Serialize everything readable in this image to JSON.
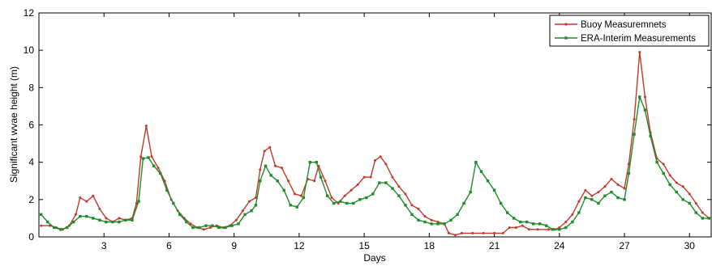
{
  "chart_data": {
    "type": "line",
    "title": "",
    "xlabel": "Days",
    "ylabel": "Significant wvae height (m)",
    "xlim": [
      0,
      31
    ],
    "ylim": [
      0,
      12
    ],
    "xticks": [
      3,
      6,
      9,
      12,
      15,
      18,
      21,
      24,
      27,
      30
    ],
    "yticks": [
      0,
      2,
      4,
      6,
      8,
      10,
      12
    ],
    "grid": false,
    "legend_position": "top-right",
    "series": [
      {
        "name": "Buoy Measuremnets",
        "color": "#c0392b",
        "marker": "dot",
        "points": [
          [
            0.1,
            0.6
          ],
          [
            0.5,
            0.6
          ],
          [
            0.8,
            0.5
          ],
          [
            1.1,
            0.4
          ],
          [
            1.4,
            0.6
          ],
          [
            1.7,
            1.2
          ],
          [
            1.9,
            2.1
          ],
          [
            2.2,
            1.9
          ],
          [
            2.5,
            2.2
          ],
          [
            2.8,
            1.5
          ],
          [
            3.1,
            1.0
          ],
          [
            3.4,
            0.8
          ],
          [
            3.7,
            1.0
          ],
          [
            4.0,
            0.9
          ],
          [
            4.3,
            1.0
          ],
          [
            4.5,
            1.8
          ],
          [
            4.7,
            4.3
          ],
          [
            4.95,
            5.95
          ],
          [
            5.2,
            4.3
          ],
          [
            5.5,
            3.7
          ],
          [
            5.8,
            3.0
          ],
          [
            6.1,
            2.0
          ],
          [
            6.4,
            1.4
          ],
          [
            6.7,
            1.0
          ],
          [
            7.0,
            0.7
          ],
          [
            7.3,
            0.5
          ],
          [
            7.6,
            0.4
          ],
          [
            7.9,
            0.5
          ],
          [
            8.2,
            0.6
          ],
          [
            8.5,
            0.5
          ],
          [
            8.8,
            0.6
          ],
          [
            9.1,
            0.9
          ],
          [
            9.4,
            1.4
          ],
          [
            9.7,
            1.9
          ],
          [
            10.0,
            2.1
          ],
          [
            10.2,
            3.6
          ],
          [
            10.4,
            4.6
          ],
          [
            10.65,
            4.8
          ],
          [
            10.9,
            3.8
          ],
          [
            11.2,
            3.7
          ],
          [
            11.5,
            3.0
          ],
          [
            11.8,
            2.3
          ],
          [
            12.1,
            2.2
          ],
          [
            12.4,
            3.1
          ],
          [
            12.7,
            3.0
          ],
          [
            12.9,
            3.8
          ],
          [
            13.2,
            3.0
          ],
          [
            13.5,
            2.1
          ],
          [
            13.8,
            1.8
          ],
          [
            14.1,
            2.2
          ],
          [
            14.4,
            2.5
          ],
          [
            14.7,
            2.8
          ],
          [
            15.0,
            3.2
          ],
          [
            15.3,
            3.2
          ],
          [
            15.5,
            4.1
          ],
          [
            15.75,
            4.3
          ],
          [
            16.0,
            3.9
          ],
          [
            16.3,
            3.2
          ],
          [
            16.6,
            2.7
          ],
          [
            16.9,
            2.3
          ],
          [
            17.2,
            1.7
          ],
          [
            17.5,
            1.5
          ],
          [
            17.8,
            1.1
          ],
          [
            18.1,
            0.9
          ],
          [
            18.4,
            0.8
          ],
          [
            18.7,
            0.7
          ],
          [
            18.9,
            0.2
          ],
          [
            19.2,
            0.1
          ],
          [
            19.5,
            0.2
          ],
          [
            20.0,
            0.2
          ],
          [
            20.5,
            0.2
          ],
          [
            21.0,
            0.2
          ],
          [
            21.4,
            0.2
          ],
          [
            21.7,
            0.5
          ],
          [
            22.0,
            0.5
          ],
          [
            22.3,
            0.6
          ],
          [
            22.6,
            0.4
          ],
          [
            23.0,
            0.4
          ],
          [
            23.5,
            0.4
          ],
          [
            23.8,
            0.4
          ],
          [
            24.0,
            0.5
          ],
          [
            24.3,
            0.8
          ],
          [
            24.6,
            1.2
          ],
          [
            24.9,
            1.9
          ],
          [
            25.2,
            2.5
          ],
          [
            25.5,
            2.2
          ],
          [
            25.8,
            2.4
          ],
          [
            26.1,
            2.7
          ],
          [
            26.4,
            3.1
          ],
          [
            26.7,
            2.8
          ],
          [
            27.0,
            2.6
          ],
          [
            27.2,
            3.9
          ],
          [
            27.45,
            6.3
          ],
          [
            27.7,
            9.9
          ],
          [
            27.95,
            7.5
          ],
          [
            28.2,
            5.6
          ],
          [
            28.5,
            4.2
          ],
          [
            28.8,
            3.9
          ],
          [
            29.1,
            3.3
          ],
          [
            29.4,
            2.9
          ],
          [
            29.7,
            2.7
          ],
          [
            30.0,
            2.3
          ],
          [
            30.3,
            1.8
          ],
          [
            30.6,
            1.3
          ],
          [
            30.9,
            1.0
          ]
        ]
      },
      {
        "name": "ERA-Interim Measurements",
        "color": "#1e8c2a",
        "marker": "square",
        "points": [
          [
            0.1,
            1.2
          ],
          [
            0.4,
            0.8
          ],
          [
            0.7,
            0.5
          ],
          [
            1.0,
            0.4
          ],
          [
            1.3,
            0.5
          ],
          [
            1.6,
            0.8
          ],
          [
            1.9,
            1.1
          ],
          [
            2.2,
            1.1
          ],
          [
            2.5,
            1.0
          ],
          [
            2.8,
            0.9
          ],
          [
            3.1,
            0.8
          ],
          [
            3.4,
            0.8
          ],
          [
            3.7,
            0.8
          ],
          [
            4.0,
            0.9
          ],
          [
            4.3,
            0.9
          ],
          [
            4.6,
            1.9
          ],
          [
            4.8,
            4.2
          ],
          [
            5.05,
            4.25
          ],
          [
            5.3,
            3.8
          ],
          [
            5.6,
            3.4
          ],
          [
            5.9,
            2.5
          ],
          [
            6.2,
            1.8
          ],
          [
            6.5,
            1.2
          ],
          [
            6.8,
            0.8
          ],
          [
            7.1,
            0.5
          ],
          [
            7.4,
            0.5
          ],
          [
            7.7,
            0.6
          ],
          [
            8.0,
            0.6
          ],
          [
            8.3,
            0.5
          ],
          [
            8.6,
            0.5
          ],
          [
            8.9,
            0.6
          ],
          [
            9.2,
            0.7
          ],
          [
            9.5,
            1.2
          ],
          [
            9.8,
            1.4
          ],
          [
            10.0,
            1.7
          ],
          [
            10.2,
            3.0
          ],
          [
            10.45,
            3.8
          ],
          [
            10.7,
            3.3
          ],
          [
            11.0,
            3.0
          ],
          [
            11.3,
            2.5
          ],
          [
            11.6,
            1.7
          ],
          [
            11.9,
            1.6
          ],
          [
            12.2,
            2.1
          ],
          [
            12.5,
            4.0
          ],
          [
            12.8,
            4.0
          ],
          [
            13.0,
            3.2
          ],
          [
            13.3,
            2.2
          ],
          [
            13.6,
            1.8
          ],
          [
            13.9,
            1.9
          ],
          [
            14.2,
            1.8
          ],
          [
            14.5,
            1.8
          ],
          [
            14.8,
            2.0
          ],
          [
            15.1,
            2.1
          ],
          [
            15.4,
            2.3
          ],
          [
            15.7,
            2.9
          ],
          [
            16.0,
            2.9
          ],
          [
            16.3,
            2.6
          ],
          [
            16.6,
            2.2
          ],
          [
            16.9,
            1.7
          ],
          [
            17.2,
            1.2
          ],
          [
            17.5,
            0.9
          ],
          [
            17.8,
            0.8
          ],
          [
            18.1,
            0.7
          ],
          [
            18.4,
            0.7
          ],
          [
            18.7,
            0.7
          ],
          [
            19.0,
            0.9
          ],
          [
            19.3,
            1.2
          ],
          [
            19.6,
            1.8
          ],
          [
            19.9,
            2.4
          ],
          [
            20.15,
            4.0
          ],
          [
            20.4,
            3.5
          ],
          [
            20.7,
            3.0
          ],
          [
            21.0,
            2.5
          ],
          [
            21.3,
            1.8
          ],
          [
            21.6,
            1.3
          ],
          [
            21.9,
            1.0
          ],
          [
            22.2,
            0.8
          ],
          [
            22.5,
            0.8
          ],
          [
            22.8,
            0.7
          ],
          [
            23.1,
            0.7
          ],
          [
            23.4,
            0.6
          ],
          [
            23.7,
            0.4
          ],
          [
            24.0,
            0.4
          ],
          [
            24.3,
            0.5
          ],
          [
            24.6,
            0.8
          ],
          [
            24.9,
            1.3
          ],
          [
            25.2,
            2.1
          ],
          [
            25.5,
            2.0
          ],
          [
            25.8,
            1.8
          ],
          [
            26.1,
            2.2
          ],
          [
            26.4,
            2.4
          ],
          [
            26.7,
            2.1
          ],
          [
            27.0,
            2.0
          ],
          [
            27.2,
            3.4
          ],
          [
            27.45,
            5.5
          ],
          [
            27.7,
            7.5
          ],
          [
            27.95,
            6.8
          ],
          [
            28.2,
            5.4
          ],
          [
            28.5,
            4.0
          ],
          [
            28.8,
            3.4
          ],
          [
            29.1,
            2.8
          ],
          [
            29.4,
            2.4
          ],
          [
            29.7,
            2.0
          ],
          [
            30.0,
            1.8
          ],
          [
            30.3,
            1.3
          ],
          [
            30.6,
            1.0
          ],
          [
            30.9,
            1.0
          ]
        ]
      }
    ]
  }
}
